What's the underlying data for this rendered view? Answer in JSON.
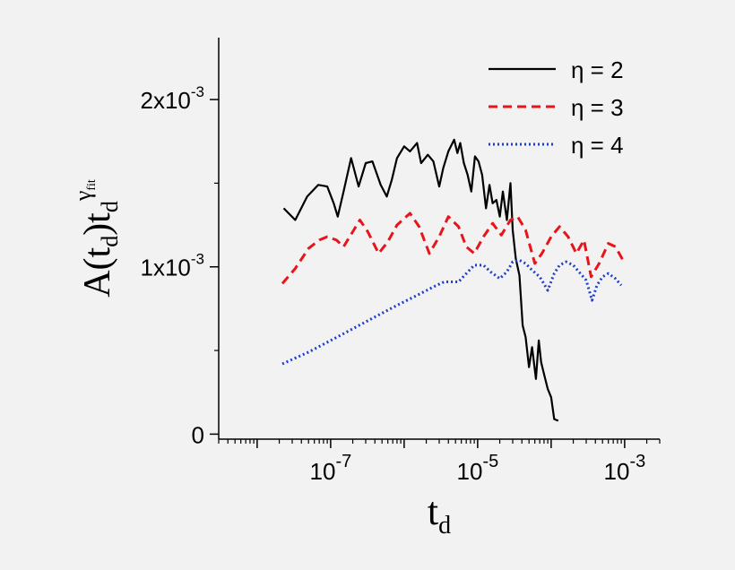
{
  "chart_data": {
    "type": "line",
    "title": "",
    "xlabel": {
      "base": "t",
      "sub": "d"
    },
    "ylabel": {
      "part1": "A(t",
      "sub1": "d",
      "part2": ")t",
      "sub2": "d",
      "sup": "γ",
      "supsub": "fit"
    },
    "x_scale": "log",
    "xlim": [
      3e-09,
      0.003
    ],
    "ylim": [
      -3e-05,
      0.00237
    ],
    "x_ticks": [
      {
        "value": 1e-07,
        "mantissa": "10",
        "exp": "-7"
      },
      {
        "value": 1e-05,
        "mantissa": "10",
        "exp": "-5"
      },
      {
        "value": 0.001,
        "mantissa": "10",
        "exp": "-3"
      }
    ],
    "y_ticks": [
      {
        "value": 0,
        "mantissa": "0",
        "exp": ""
      },
      {
        "value": 0.001,
        "mantissa": "1x10",
        "exp": "-3"
      },
      {
        "value": 0.002,
        "mantissa": "2x10",
        "exp": "-3"
      }
    ],
    "grid": false,
    "legend_position": "top-right",
    "series": [
      {
        "name": "η = 2",
        "color": "#000000",
        "dash": "solid",
        "x": [
          2.3e-08,
          3.3e-08,
          4.8e-08,
          6.8e-08,
          9e-08,
          1.1e-07,
          1.25e-07,
          1.5e-07,
          1.9e-07,
          2.4e-07,
          3e-07,
          3.7e-07,
          4.8e-07,
          5.8e-07,
          6.8e-07,
          8e-07,
          1e-06,
          1.2e-06,
          1.5e-06,
          1.7e-06,
          2.1e-06,
          2.5e-06,
          3e-06,
          3.4e-06,
          4e-06,
          4.8e-06,
          5.3e-06,
          5.8e-06,
          6.5e-06,
          7.3e-06,
          8.2e-06,
          9.2e-06,
          1.03e-05,
          1.15e-05,
          1.3e-05,
          1.45e-05,
          1.6e-05,
          1.8e-05,
          2e-05,
          2.2e-05,
          2.5e-05,
          2.8e-05,
          3e-05,
          3.3e-05,
          3.7e-05,
          4.1e-05,
          4.5e-05,
          5e-05,
          5.5e-05,
          6.2e-05,
          6.8e-05,
          7.3e-05,
          8e-05,
          9e-05,
          0.0001,
          0.00011,
          0.000125
        ],
        "y": [
          0.00135,
          0.00128,
          0.00142,
          0.00149,
          0.00148,
          0.00138,
          0.0013,
          0.00145,
          0.00165,
          0.00148,
          0.00162,
          0.00163,
          0.00149,
          0.00142,
          0.00152,
          0.00165,
          0.00172,
          0.00169,
          0.00174,
          0.00162,
          0.00167,
          0.00163,
          0.00148,
          0.00159,
          0.00169,
          0.00176,
          0.00168,
          0.00174,
          0.00162,
          0.00155,
          0.00145,
          0.00166,
          0.00163,
          0.00155,
          0.00135,
          0.00149,
          0.00138,
          0.0014,
          0.0013,
          0.00145,
          0.00128,
          0.0015,
          0.00122,
          0.00105,
          0.00095,
          0.00065,
          0.00058,
          0.0004,
          0.00052,
          0.00033,
          0.00056,
          0.00043,
          0.00036,
          0.00027,
          0.00022,
          9e-05,
          8e-05
        ]
      },
      {
        "name": "η = 3",
        "color": "#e8141b",
        "dash": "dashed",
        "x": [
          2.2e-08,
          3.3e-08,
          5e-08,
          7e-08,
          9e-08,
          1.2e-07,
          1.5e-07,
          2e-07,
          2.5e-07,
          3.2e-07,
          4.5e-07,
          6e-07,
          8e-07,
          1.2e-06,
          1.6e-06,
          2.2e-06,
          3e-06,
          4e-06,
          5.5e-06,
          7e-06,
          9e-06,
          1.2e-05,
          1.6e-05,
          2.1e-05,
          2.8e-05,
          3.5e-05,
          4.5e-05,
          6e-05,
          7.5e-05,
          0.0001,
          0.00013,
          0.00017,
          0.00022,
          0.00028,
          0.00035,
          0.00045,
          0.0006,
          0.00075,
          0.00095
        ],
        "y": [
          0.0009,
          0.00099,
          0.00111,
          0.00116,
          0.00118,
          0.00116,
          0.00112,
          0.00121,
          0.00128,
          0.00121,
          0.00108,
          0.00115,
          0.00125,
          0.00132,
          0.00124,
          0.00108,
          0.00118,
          0.0013,
          0.00124,
          0.00112,
          0.00108,
          0.00118,
          0.00126,
          0.00119,
          0.00128,
          0.0013,
          0.00122,
          0.00102,
          0.00108,
          0.00118,
          0.00124,
          0.00118,
          0.00108,
          0.00116,
          0.00094,
          0.00102,
          0.00114,
          0.00112,
          0.00104
        ]
      },
      {
        "name": "η = 4",
        "color": "#1f3ec8",
        "dash": "dotted",
        "x": [
          2.2e-08,
          5e-08,
          1e-07,
          2e-07,
          4e-07,
          8e-07,
          1.5e-06,
          2.5e-06,
          3.5e-06,
          4.5e-06,
          5.5e-06,
          7e-06,
          9e-06,
          1.2e-05,
          1.5e-05,
          2e-05,
          2.5e-05,
          3e-05,
          3.7e-05,
          4.5e-05,
          5.5e-05,
          7e-05,
          9e-05,
          0.00011,
          0.00013,
          0.00016,
          0.0002,
          0.00025,
          0.0003,
          0.00036,
          0.00042,
          0.0005,
          0.0006,
          0.00075,
          0.0009
        ],
        "y": [
          0.00042,
          0.00049,
          0.00056,
          0.00063,
          0.0007,
          0.00077,
          0.00083,
          0.00088,
          0.00091,
          0.00091,
          0.00091,
          0.00096,
          0.00101,
          0.00101,
          0.00097,
          0.00093,
          0.00097,
          0.00103,
          0.00104,
          0.00102,
          0.00098,
          0.00094,
          0.00086,
          0.00096,
          0.00101,
          0.00103,
          0.00101,
          0.00096,
          0.00092,
          0.0008,
          0.00089,
          0.00094,
          0.00096,
          0.00093,
          0.00089
        ]
      }
    ]
  }
}
